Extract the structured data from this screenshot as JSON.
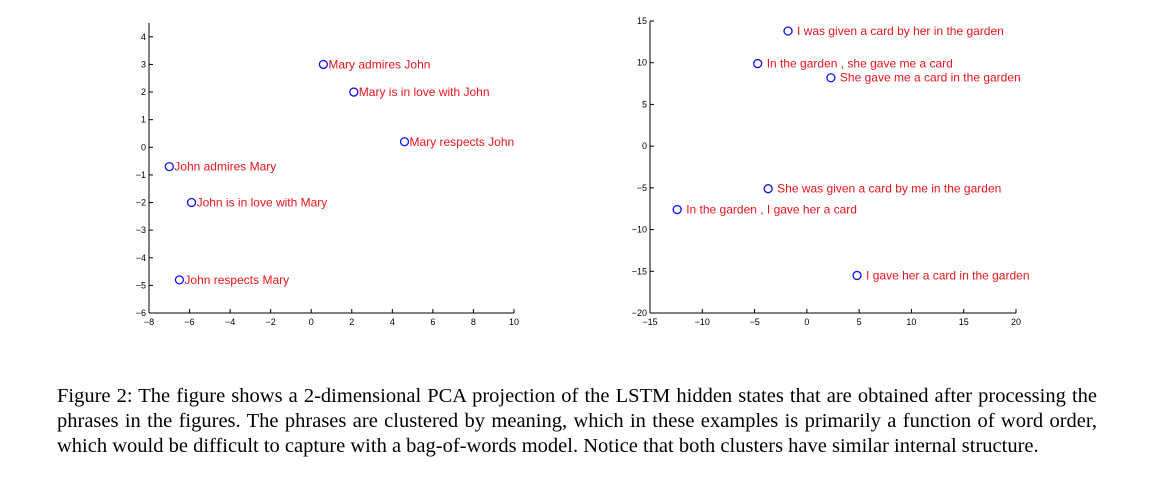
{
  "chart_data": [
    {
      "type": "scatter",
      "xlim": [
        -8,
        10
      ],
      "ylim": [
        -6,
        4.5
      ],
      "xticks": [
        -8,
        -6,
        -4,
        -2,
        0,
        2,
        4,
        6,
        8,
        10
      ],
      "yticks": [
        -6,
        -5,
        -4,
        -3,
        -2,
        -1,
        0,
        1,
        2,
        3,
        4
      ],
      "grid": false,
      "points": [
        {
          "x": 0.6,
          "y": 3.0,
          "label": "Mary admires John"
        },
        {
          "x": 2.1,
          "y": 2.0,
          "label": "Mary is in love with John"
        },
        {
          "x": 4.6,
          "y": 0.2,
          "label": "Mary respects John"
        },
        {
          "x": -7.0,
          "y": -0.7,
          "label": "John admires Mary"
        },
        {
          "x": -5.9,
          "y": -2.0,
          "label": "John is in love with Mary"
        },
        {
          "x": -6.5,
          "y": -4.8,
          "label": "John respects Mary"
        }
      ]
    },
    {
      "type": "scatter",
      "xlim": [
        -15,
        20
      ],
      "ylim": [
        -20,
        15
      ],
      "xticks": [
        -15,
        -10,
        -5,
        0,
        5,
        10,
        15,
        20
      ],
      "yticks": [
        -20,
        -15,
        -10,
        -5,
        0,
        5,
        10,
        15
      ],
      "grid": false,
      "points": [
        {
          "x": -1.8,
          "y": 13.8,
          "label": "I was given a card by her in the garden"
        },
        {
          "x": -4.7,
          "y": 9.9,
          "label": "In the garden , she gave me a card"
        },
        {
          "x": 2.3,
          "y": 8.2,
          "label": "She gave me a card in the garden"
        },
        {
          "x": -3.7,
          "y": -5.1,
          "label": "She was given a card by me in the garden"
        },
        {
          "x": -12.4,
          "y": -7.6,
          "label": "In the garden , I gave her a card"
        },
        {
          "x": 4.8,
          "y": -15.5,
          "label": "I gave her a card in the garden"
        }
      ]
    }
  ],
  "caption": "Figure 2: The figure shows a 2-dimensional PCA projection of the LSTM hidden states that are obtained after processing the phrases in the figures. The phrases are clustered by meaning, which in these examples is primarily a function of word order, which would be difficult to capture with a bag-of-words model. Notice that both clusters have similar internal structure.",
  "colors": {
    "marker": "#1010ff",
    "label": "#e8141c",
    "axis": "#000000"
  }
}
